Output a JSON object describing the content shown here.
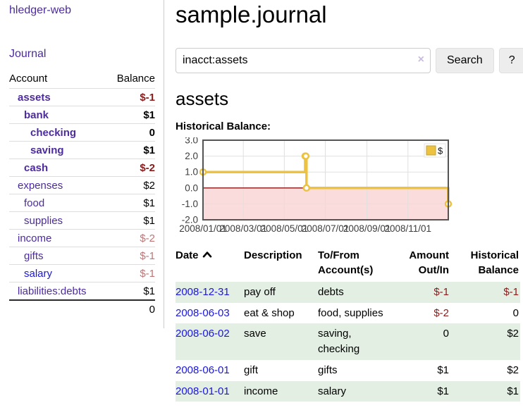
{
  "colors": {
    "purple": "#4c2b9e",
    "link-blue": "#1b16dd",
    "neg-strong": "#8b1a1a",
    "neg-soft": "#bd7676",
    "row-green": "#e3efe3",
    "chart-gold": "#edc240",
    "chart-pink": "#fbdcdc",
    "chart-zero": "#8b1111"
  },
  "sidebar": {
    "app_title": "hledger-web",
    "journal_label": "Journal",
    "account_header": "Account",
    "balance_header": "Balance",
    "accounts": [
      {
        "name": "assets",
        "indent": 1,
        "bold": true,
        "balance": "$-1",
        "balance_class": "neg-strong"
      },
      {
        "name": "bank",
        "indent": 2,
        "bold": true,
        "balance": "$1",
        "balance_class": ""
      },
      {
        "name": "checking",
        "indent": 3,
        "bold": true,
        "balance": "0",
        "balance_class": ""
      },
      {
        "name": "saving",
        "indent": 3,
        "bold": true,
        "balance": "$1",
        "balance_class": ""
      },
      {
        "name": "cash",
        "indent": 2,
        "bold": true,
        "balance": "$-2",
        "balance_class": "neg-strong"
      },
      {
        "name": "expenses",
        "indent": 1,
        "bold": false,
        "balance": "$2",
        "balance_class": ""
      },
      {
        "name": "food",
        "indent": 2,
        "bold": false,
        "balance": "$1",
        "balance_class": ""
      },
      {
        "name": "supplies",
        "indent": 2,
        "bold": false,
        "balance": "$1",
        "balance_class": ""
      },
      {
        "name": "income",
        "indent": 1,
        "bold": false,
        "balance": "$-2",
        "balance_class": "neg-soft"
      },
      {
        "name": "gifts",
        "indent": 2,
        "bold": false,
        "balance": "$-1",
        "balance_class": "neg-soft"
      },
      {
        "name": "salary",
        "indent": 2,
        "bold": false,
        "blue": true,
        "balance": "$-1",
        "balance_class": "neg-soft"
      },
      {
        "name": "liabilities:debts",
        "indent": 1,
        "bold": false,
        "balance": "$1",
        "balance_class": ""
      }
    ],
    "total": "0"
  },
  "main": {
    "title": "sample.journal",
    "search": {
      "value": "inacct:assets",
      "clear_icon": "×",
      "button_label": "Search",
      "help_label": "?"
    },
    "account_heading": "assets",
    "chart_label": "Historical Balance:"
  },
  "chart_data": {
    "type": "line",
    "step": true,
    "title": "Historical Balance of assets",
    "x_range": [
      "2008-01-01",
      "2008-12-31"
    ],
    "ylim": [
      -2,
      3
    ],
    "y_ticks": [
      "3.0",
      "2.0",
      "1.0",
      "0.0",
      "-1.0",
      "-2.0"
    ],
    "x_ticks": [
      "2008/01/01",
      "2008/03/01",
      "2008/05/01",
      "2008/07/01",
      "2008/09/01",
      "2008/11/01"
    ],
    "grid": true,
    "legend_position": "top-right",
    "series": [
      {
        "name": "$",
        "points": [
          [
            "2008-01-01",
            1
          ],
          [
            "2008-06-01",
            2
          ],
          [
            "2008-06-02",
            2
          ],
          [
            "2008-06-03",
            0
          ],
          [
            "2008-12-31",
            -1
          ]
        ]
      }
    ]
  },
  "transactions": {
    "headers": [
      "Date",
      "Description",
      "To/From Account(s)",
      "Amount Out/In",
      "Historical Balance"
    ],
    "sort_icon": "chevron-up",
    "rows": [
      {
        "date": "2008-12-31",
        "description": "pay off",
        "accounts": "debts",
        "amount": "$-1",
        "amount_neg": true,
        "balance": "$-1",
        "balance_neg": true
      },
      {
        "date": "2008-06-03",
        "description": "eat & shop",
        "accounts": "food, supplies",
        "amount": "$-2",
        "amount_neg": true,
        "balance": "0",
        "balance_neg": false
      },
      {
        "date": "2008-06-02",
        "description": "save",
        "accounts": "saving, checking",
        "amount": "0",
        "amount_neg": false,
        "balance": "$2",
        "balance_neg": false
      },
      {
        "date": "2008-06-01",
        "description": "gift",
        "accounts": "gifts",
        "amount": "$1",
        "amount_neg": false,
        "balance": "$2",
        "balance_neg": false
      },
      {
        "date": "2008-01-01",
        "description": "income",
        "accounts": "salary",
        "amount": "$1",
        "amount_neg": false,
        "balance": "$1",
        "balance_neg": false
      }
    ]
  }
}
